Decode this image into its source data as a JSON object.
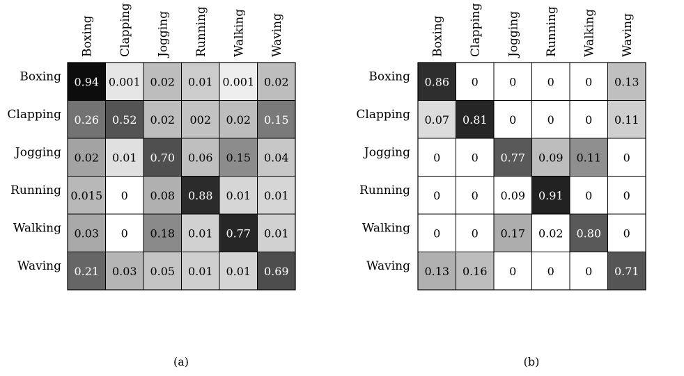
{
  "chart_data": [
    {
      "type": "heatmap",
      "caption": "(a)",
      "row_labels": [
        "Boxing",
        "Clapping",
        "Jogging",
        "Running",
        "Walking",
        "Waving"
      ],
      "col_labels": [
        "Boxing",
        "Clapping",
        "Jogging",
        "Running",
        "Walking",
        "Waving"
      ],
      "values": [
        [
          "0.94",
          "0.001",
          "0.02",
          "0.01",
          "0.001",
          "0.02"
        ],
        [
          "0.26",
          "0.52",
          "0.02",
          "002",
          "0.02",
          "0.15"
        ],
        [
          "0.02",
          "0.01",
          "0.70",
          "0.06",
          "0.15",
          "0.04"
        ],
        [
          "0.015",
          "0",
          "0.08",
          "0.88",
          "0.01",
          "0.01"
        ],
        [
          "0.03",
          "0",
          "0.18",
          "0.01",
          "0.77",
          "0.01"
        ],
        [
          "0.21",
          "0.03",
          "0.05",
          "0.01",
          "0.01",
          "0.69"
        ]
      ],
      "shades": [
        [
          "#0d0d0d",
          "#e6e6e6",
          "#bdbdbd",
          "#cccccc",
          "#eeeeee",
          "#bdbdbd"
        ],
        [
          "#737373",
          "#545454",
          "#bdbdbd",
          "#c2c2c2",
          "#bdbdbd",
          "#7a7a7a"
        ],
        [
          "#a3a3a3",
          "#e0e0e0",
          "#4f4f4f",
          "#bfbfbf",
          "#8c8c8c",
          "#c7c7c7"
        ],
        [
          "#b8b8b8",
          "#ffffff",
          "#b0b0b0",
          "#2b2b2b",
          "#d6d6d6",
          "#d6d6d6"
        ],
        [
          "#a8a8a8",
          "#ffffff",
          "#8a8a8a",
          "#d1d1d1",
          "#262626",
          "#d1d1d1"
        ],
        [
          "#666666",
          "#b5b5b5",
          "#c4c4c4",
          "#cfcfcf",
          "#d4d4d4",
          "#4d4d4d"
        ]
      ]
    },
    {
      "type": "heatmap",
      "caption": "(b)",
      "row_labels": [
        "Boxing",
        "Clapping",
        "Jogging",
        "Running",
        "Walking",
        "Waving"
      ],
      "col_labels": [
        "Boxing",
        "Clapping",
        "Jogging",
        "Running",
        "Walking",
        "Waving"
      ],
      "values": [
        [
          "0.86",
          "0",
          "0",
          "0",
          "0",
          "0.13"
        ],
        [
          "0.07",
          "0.81",
          "0",
          "0",
          "0",
          "0.11"
        ],
        [
          "0",
          "0",
          "0.77",
          "0.09",
          "0.11",
          "0"
        ],
        [
          "0",
          "0",
          "0.09",
          "0.91",
          "0",
          "0"
        ],
        [
          "0",
          "0",
          "0.17",
          "0.02",
          "0.80",
          "0"
        ],
        [
          "0.13",
          "0.16",
          "0",
          "0",
          "0",
          "0.71"
        ]
      ],
      "shades": [
        [
          "#2e2e2e",
          "#ffffff",
          "#ffffff",
          "#ffffff",
          "#ffffff",
          "#bfbfbf"
        ],
        [
          "#dcdcdc",
          "#262626",
          "#ffffff",
          "#ffffff",
          "#ffffff",
          "#cfcfcf"
        ],
        [
          "#ffffff",
          "#ffffff",
          "#595959",
          "#bdbdbd",
          "#8f8f8f",
          "#ffffff"
        ],
        [
          "#ffffff",
          "#ffffff",
          "#ffffff",
          "#222222",
          "#ffffff",
          "#ffffff"
        ],
        [
          "#ffffff",
          "#ffffff",
          "#adadad",
          "#ffffff",
          "#595959",
          "#ffffff"
        ],
        [
          "#b0b0b0",
          "#bdbdbd",
          "#ffffff",
          "#ffffff",
          "#ffffff",
          "#555555"
        ]
      ]
    }
  ]
}
